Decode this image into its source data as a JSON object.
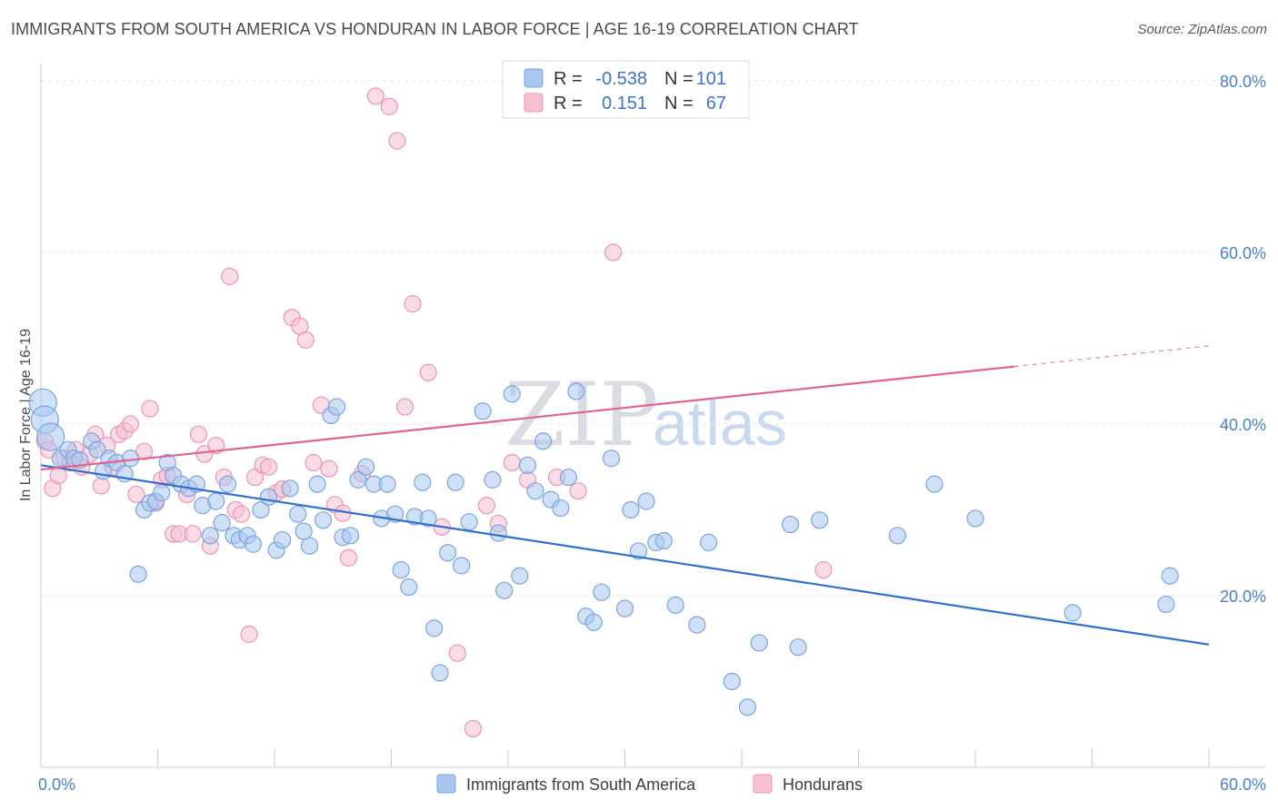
{
  "header": {
    "title": "IMMIGRANTS FROM SOUTH AMERICA VS HONDURAN IN LABOR FORCE | AGE 16-19 CORRELATION CHART",
    "source": "Source: ZipAtlas.com"
  },
  "watermark": {
    "part1": "ZIP",
    "part2": "atlas"
  },
  "legend_box": {
    "rows": [
      {
        "r_label": "R =",
        "r_value": "-0.538",
        "n_label": "N =",
        "n_value": "101",
        "color": "#8db3e8"
      },
      {
        "r_label": "R =",
        "r_value": "0.151",
        "n_label": "N =",
        "n_value": "67",
        "color": "#f2a7c1"
      }
    ]
  },
  "chart_data": {
    "type": "scatter",
    "title": "IMMIGRANTS FROM SOUTH AMERICA VS HONDURAN IN LABOR FORCE | AGE 16-19 CORRELATION CHART",
    "xlabel": "",
    "ylabel": "In Labor Force | Age 16-19",
    "xlim": [
      0,
      60
    ],
    "ylim": [
      0,
      82
    ],
    "x_tick_labels": [
      "0.0%",
      "60.0%"
    ],
    "y_ticks": [
      20,
      40,
      60,
      80
    ],
    "y_tick_labels": [
      "20.0%",
      "40.0%",
      "60.0%",
      "80.0%"
    ],
    "grid": true,
    "legend_position": "bottom",
    "colors": {
      "blue_fill": "#aac6ee",
      "blue_stroke": "#7aa5e0",
      "blue_line": "#2f6fd1",
      "pink_fill": "#f6bfd2",
      "pink_stroke": "#ee93b3",
      "pink_line": "#e0648f"
    },
    "series": [
      {
        "name": "Immigrants from South America",
        "color": "#8db3e8",
        "r": -0.538,
        "n": 101,
        "trend": {
          "x": [
            0,
            60
          ],
          "y": [
            35.2,
            14.3
          ]
        },
        "points": [
          [
            0.1,
            42.5
          ],
          [
            0.2,
            40.5
          ],
          [
            0.5,
            38.5
          ],
          [
            1.0,
            36
          ],
          [
            1.4,
            37
          ],
          [
            1.7,
            36
          ],
          [
            2.0,
            35.8
          ],
          [
            2.6,
            38
          ],
          [
            2.9,
            37
          ],
          [
            3.2,
            34.5
          ],
          [
            3.5,
            36
          ],
          [
            3.9,
            35.5
          ],
          [
            4.3,
            34.2
          ],
          [
            4.6,
            36
          ],
          [
            5.0,
            22.5
          ],
          [
            5.3,
            30
          ],
          [
            5.6,
            30.8
          ],
          [
            5.9,
            31
          ],
          [
            6.2,
            32
          ],
          [
            6.5,
            35.5
          ],
          [
            6.8,
            34
          ],
          [
            7.2,
            33
          ],
          [
            7.6,
            32.5
          ],
          [
            8.0,
            33
          ],
          [
            8.3,
            30.5
          ],
          [
            8.7,
            27
          ],
          [
            9.0,
            31
          ],
          [
            9.3,
            28.5
          ],
          [
            9.6,
            33
          ],
          [
            9.9,
            27
          ],
          [
            10.2,
            26.5
          ],
          [
            10.6,
            27
          ],
          [
            10.9,
            26
          ],
          [
            11.3,
            30
          ],
          [
            11.7,
            31.5
          ],
          [
            12.1,
            25.3
          ],
          [
            12.4,
            26.5
          ],
          [
            12.8,
            32.5
          ],
          [
            13.2,
            29.5
          ],
          [
            13.5,
            27.5
          ],
          [
            13.8,
            25.8
          ],
          [
            14.2,
            33
          ],
          [
            14.5,
            28.8
          ],
          [
            14.9,
            41
          ],
          [
            15.2,
            42
          ],
          [
            15.5,
            26.8
          ],
          [
            15.9,
            27
          ],
          [
            16.3,
            33.5
          ],
          [
            16.7,
            35
          ],
          [
            17.1,
            33
          ],
          [
            17.5,
            29
          ],
          [
            17.8,
            33
          ],
          [
            18.2,
            29.5
          ],
          [
            18.5,
            23
          ],
          [
            18.9,
            21
          ],
          [
            19.2,
            29.2
          ],
          [
            19.6,
            33.2
          ],
          [
            19.9,
            29
          ],
          [
            20.2,
            16.2
          ],
          [
            20.5,
            11
          ],
          [
            20.9,
            25
          ],
          [
            21.3,
            33.2
          ],
          [
            21.6,
            23.5
          ],
          [
            22.0,
            28.6
          ],
          [
            22.7,
            41.5
          ],
          [
            23.2,
            33.5
          ],
          [
            23.5,
            27.3
          ],
          [
            23.8,
            20.6
          ],
          [
            24.2,
            43.5
          ],
          [
            24.6,
            22.3
          ],
          [
            25.0,
            35.2
          ],
          [
            25.4,
            32.2
          ],
          [
            25.8,
            38
          ],
          [
            26.2,
            31.2
          ],
          [
            26.7,
            30.2
          ],
          [
            27.1,
            33.8
          ],
          [
            27.5,
            43.8
          ],
          [
            28.0,
            17.6
          ],
          [
            28.4,
            16.9
          ],
          [
            28.8,
            20.4
          ],
          [
            29.3,
            36
          ],
          [
            30.0,
            18.5
          ],
          [
            30.3,
            30
          ],
          [
            30.7,
            25.2
          ],
          [
            31.1,
            31
          ],
          [
            31.6,
            26.2
          ],
          [
            32.0,
            26.4
          ],
          [
            32.6,
            18.9
          ],
          [
            33.7,
            16.6
          ],
          [
            34.3,
            26.2
          ],
          [
            35.5,
            10
          ],
          [
            36.3,
            7
          ],
          [
            36.9,
            14.5
          ],
          [
            38.5,
            28.3
          ],
          [
            38.9,
            14
          ],
          [
            40.0,
            28.8
          ],
          [
            44.0,
            27
          ],
          [
            45.9,
            33
          ],
          [
            48.0,
            29
          ],
          [
            53.0,
            18
          ],
          [
            57.8,
            19
          ],
          [
            58.0,
            22.3
          ]
        ]
      },
      {
        "name": "Hondurans",
        "color": "#f2a7c1",
        "r": 0.151,
        "n": 67,
        "trend": {
          "x": [
            0,
            50
          ],
          "y": [
            34.7,
            46.7
          ]
        },
        "trend_dashed": {
          "x": [
            50,
            60
          ],
          "y": [
            46.7,
            49.1
          ]
        },
        "points": [
          [
            0.2,
            38
          ],
          [
            0.4,
            37
          ],
          [
            0.6,
            32.5
          ],
          [
            0.9,
            34
          ],
          [
            1.2,
            36
          ],
          [
            1.5,
            35.5
          ],
          [
            1.8,
            37
          ],
          [
            2.1,
            35
          ],
          [
            2.5,
            36.5
          ],
          [
            2.8,
            38.8
          ],
          [
            3.1,
            32.8
          ],
          [
            3.4,
            37.5
          ],
          [
            3.7,
            35
          ],
          [
            4.0,
            38.8
          ],
          [
            4.3,
            39.2
          ],
          [
            4.6,
            40
          ],
          [
            4.9,
            31.8
          ],
          [
            5.3,
            36.8
          ],
          [
            5.6,
            41.8
          ],
          [
            5.9,
            30.8
          ],
          [
            6.2,
            33.5
          ],
          [
            6.5,
            34
          ],
          [
            6.8,
            27.2
          ],
          [
            7.1,
            27.2
          ],
          [
            7.5,
            31.8
          ],
          [
            7.8,
            27.2
          ],
          [
            8.1,
            38.8
          ],
          [
            8.4,
            36.5
          ],
          [
            8.7,
            25.8
          ],
          [
            9.0,
            37.5
          ],
          [
            9.4,
            33.8
          ],
          [
            9.7,
            57.2
          ],
          [
            10.0,
            30
          ],
          [
            10.3,
            29.5
          ],
          [
            10.7,
            15.5
          ],
          [
            11.0,
            33.8
          ],
          [
            11.4,
            35.2
          ],
          [
            11.7,
            35
          ],
          [
            12.1,
            32
          ],
          [
            12.4,
            32.4
          ],
          [
            12.9,
            52.4
          ],
          [
            13.3,
            51.4
          ],
          [
            13.6,
            49.8
          ],
          [
            14.0,
            35.5
          ],
          [
            14.4,
            42.2
          ],
          [
            14.8,
            34.8
          ],
          [
            15.1,
            30.6
          ],
          [
            15.5,
            29.6
          ],
          [
            15.8,
            24.4
          ],
          [
            16.5,
            34.2
          ],
          [
            17.2,
            78.2
          ],
          [
            17.9,
            77
          ],
          [
            18.3,
            73
          ],
          [
            18.7,
            42
          ],
          [
            19.1,
            54
          ],
          [
            19.9,
            46
          ],
          [
            20.6,
            28
          ],
          [
            21.4,
            13.3
          ],
          [
            22.2,
            4.5
          ],
          [
            22.9,
            30.5
          ],
          [
            23.5,
            28.4
          ],
          [
            24.2,
            35.5
          ],
          [
            25.0,
            33.5
          ],
          [
            26.5,
            33.8
          ],
          [
            27.6,
            32.2
          ],
          [
            29.4,
            60
          ],
          [
            40.2,
            23
          ]
        ]
      }
    ]
  },
  "bottom_legend": {
    "items": [
      {
        "label": "Immigrants from South America",
        "color": "#aac6ee"
      },
      {
        "label": "Hondurans",
        "color": "#f6bfd2"
      }
    ]
  }
}
